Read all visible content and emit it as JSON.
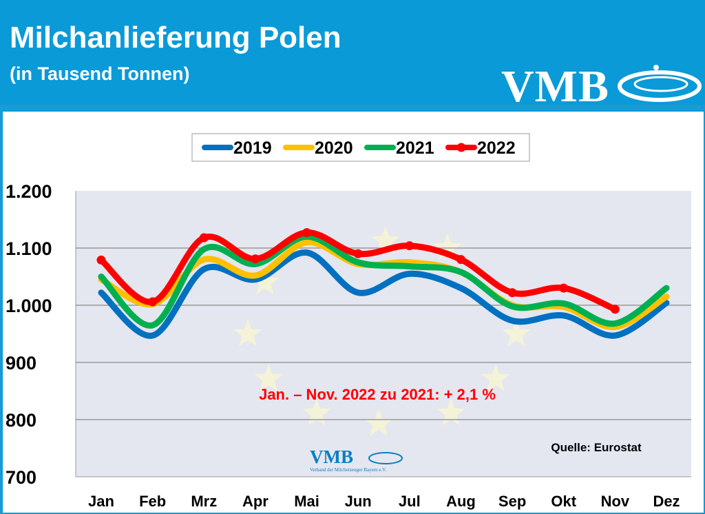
{
  "header": {
    "title": "Milchanlieferung Polen",
    "subtitle": "(in Tausend Tonnen)",
    "logo": "VMB"
  },
  "chart_data": {
    "type": "line",
    "title": "Milchanlieferung Polen",
    "subtitle": "(in Tausend Tonnen)",
    "categories": [
      "Jan",
      "Feb",
      "Mrz",
      "Apr",
      "Mai",
      "Jun",
      "Jul",
      "Aug",
      "Sep",
      "Okt",
      "Nov",
      "Dez"
    ],
    "yticks": [
      "1.200",
      "1.100",
      "1.000",
      "900",
      "800",
      "700"
    ],
    "ylim": [
      700,
      1200
    ],
    "grid": true,
    "legend": "top",
    "series": [
      {
        "name": "2019",
        "color": "#0070c0",
        "values": [
          1022,
          947,
          1063,
          1045,
          1092,
          1022,
          1055,
          1030,
          973,
          982,
          947,
          1004
        ]
      },
      {
        "name": "2020",
        "color": "#ffc000",
        "values": [
          1045,
          1002,
          1080,
          1052,
          1110,
          1072,
          1075,
          1058,
          1000,
          997,
          962,
          1015
        ]
      },
      {
        "name": "2021",
        "color": "#00b050",
        "values": [
          1050,
          965,
          1098,
          1072,
          1120,
          1075,
          1068,
          1058,
          998,
          1003,
          968,
          1030
        ]
      },
      {
        "name": "2022",
        "color": "#ff0000",
        "values": [
          1079,
          1006,
          1118,
          1081,
          1127,
          1090,
          1104,
          1080,
          1022,
          1030,
          993,
          null
        ],
        "markers": true
      }
    ],
    "annotation": "Jan. – Nov. 2022 zu 2021: + 2,1 %",
    "source": "Quelle: Eurostat",
    "watermark": "VMB",
    "watermark_sub": "Verband der Milcherzeuger Bayern e.V."
  }
}
